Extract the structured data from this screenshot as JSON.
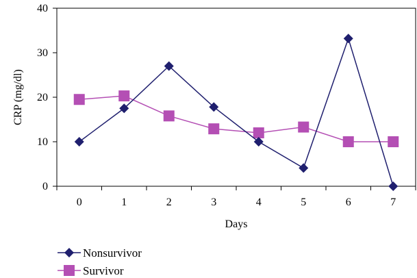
{
  "chart_data": {
    "type": "line",
    "title": "",
    "xlabel": "Days",
    "ylabel": "CRP (mg/dl)",
    "categories": [
      "0",
      "1",
      "2",
      "3",
      "4",
      "5",
      "6",
      "7"
    ],
    "ylim": [
      0,
      40
    ],
    "yticks": [
      "0",
      "10",
      "20",
      "30",
      "40"
    ],
    "grid": false,
    "legend_position": "bottom-left",
    "series": [
      {
        "name": "Nonsurvivor",
        "marker": "diamond",
        "color": "#1f1f6e",
        "values": [
          10,
          17.5,
          27,
          17.8,
          10,
          4.1,
          33.2,
          0
        ]
      },
      {
        "name": "Survivor",
        "marker": "square",
        "color": "#b44fb4",
        "values": [
          19.5,
          20.3,
          15.8,
          12.9,
          12,
          13.3,
          10,
          10
        ]
      }
    ]
  }
}
